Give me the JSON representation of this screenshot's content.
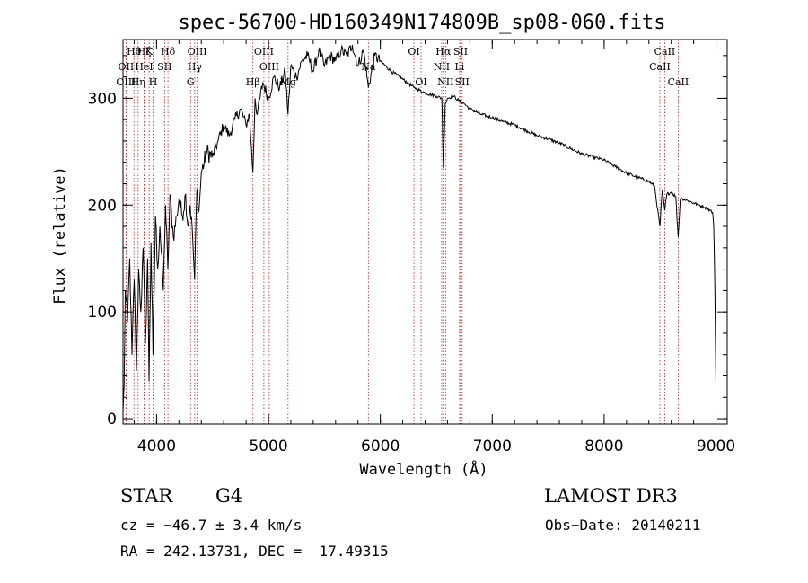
{
  "chart_data": {
    "type": "line",
    "title": "spec-56700-HD160349N174809B_sp08-060.fits",
    "xlabel": "Wavelength (Å)",
    "ylabel": "Flux (relative)",
    "xlim": [
      3700,
      9100
    ],
    "ylim": [
      -5,
      355
    ],
    "xticks": [
      4000,
      5000,
      6000,
      7000,
      8000,
      9000
    ],
    "yticks": [
      0,
      100,
      200,
      300
    ],
    "x_minor_step": 200,
    "y_minor_step": 20,
    "series": [
      {
        "name": "spectrum",
        "x": [
          3700,
          3710,
          3720,
          3740,
          3760,
          3780,
          3800,
          3820,
          3840,
          3860,
          3880,
          3900,
          3920,
          3933,
          3950,
          3968,
          3990,
          4010,
          4030,
          4060,
          4080,
          4101,
          4120,
          4150,
          4180,
          4200,
          4230,
          4260,
          4280,
          4300,
          4320,
          4340,
          4360,
          4380,
          4400,
          4450,
          4500,
          4550,
          4600,
          4650,
          4700,
          4750,
          4800,
          4830,
          4861,
          4880,
          4900,
          4950,
          5000,
          5050,
          5100,
          5150,
          5175,
          5200,
          5250,
          5300,
          5350,
          5400,
          5450,
          5500,
          5550,
          5600,
          5650,
          5700,
          5750,
          5800,
          5850,
          5893,
          5950,
          6000,
          6100,
          6200,
          6300,
          6400,
          6500,
          6550,
          6563,
          6580,
          6600,
          6650,
          6700,
          6750,
          6800,
          6900,
          7000,
          7100,
          7200,
          7300,
          7400,
          7500,
          7600,
          7700,
          7800,
          7900,
          8000,
          8100,
          8200,
          8300,
          8400,
          8450,
          8498,
          8520,
          8542,
          8560,
          8600,
          8640,
          8662,
          8680,
          8700,
          8750,
          8800,
          8850,
          8900,
          8950,
          8970,
          8980,
          8990,
          9000
        ],
        "y": [
          5,
          30,
          120,
          90,
          150,
          60,
          130,
          45,
          140,
          100,
          160,
          70,
          150,
          35,
          165,
          60,
          190,
          140,
          180,
          120,
          200,
          140,
          210,
          170,
          190,
          205,
          190,
          210,
          180,
          200,
          175,
          130,
          215,
          195,
          230,
          250,
          245,
          260,
          275,
          265,
          280,
          290,
          275,
          285,
          230,
          300,
          285,
          315,
          300,
          320,
          310,
          325,
          285,
          330,
          320,
          335,
          340,
          325,
          345,
          330,
          340,
          335,
          345,
          340,
          350,
          330,
          345,
          310,
          340,
          335,
          325,
          318,
          310,
          305,
          302,
          300,
          235,
          295,
          300,
          302,
          298,
          295,
          290,
          285,
          282,
          278,
          275,
          270,
          265,
          262,
          258,
          253,
          248,
          245,
          242,
          236,
          230,
          226,
          222,
          218,
          180,
          214,
          195,
          210,
          212,
          208,
          170,
          205,
          206,
          204,
          202,
          200,
          198,
          195,
          193,
          180,
          120,
          30
        ]
      }
    ],
    "line_markers": [
      {
        "label": "Hθ",
        "x": 3798,
        "row": 0
      },
      {
        "label": "OII",
        "x": 3727,
        "row": 1
      },
      {
        "label": "OIII",
        "x": 3727,
        "row": 2
      },
      {
        "label": "Hη",
        "x": 3835,
        "row": 2
      },
      {
        "label": "Hζ",
        "x": 3889,
        "row": 0
      },
      {
        "label": "HeI",
        "x": 3889,
        "row": 1
      },
      {
        "label": "K",
        "x": 3934,
        "row": 0
      },
      {
        "label": "H",
        "x": 3969,
        "row": 2
      },
      {
        "label": "SII",
        "x": 4072,
        "row": 1
      },
      {
        "label": "Hδ",
        "x": 4102,
        "row": 0
      },
      {
        "label": "OIII",
        "x": 4363,
        "row": 0
      },
      {
        "label": "Hγ",
        "x": 4341,
        "row": 1
      },
      {
        "label": "G",
        "x": 4304,
        "row": 2
      },
      {
        "label": "OIII",
        "x": 4959,
        "row": 0
      },
      {
        "label": "OIII",
        "x": 5007,
        "row": 1
      },
      {
        "label": "Hβ",
        "x": 4861,
        "row": 2
      },
      {
        "label": "Mg",
        "x": 5175,
        "row": 2
      },
      {
        "label": "Na",
        "x": 5893,
        "row": 1
      },
      {
        "label": "OI",
        "x": 6300,
        "row": 0
      },
      {
        "label": "OI",
        "x": 6364,
        "row": 2
      },
      {
        "label": "Hα",
        "x": 6563,
        "row": 0
      },
      {
        "label": "NII",
        "x": 6548,
        "row": 1
      },
      {
        "label": "NII",
        "x": 6583,
        "row": 2
      },
      {
        "label": "SII",
        "x": 6717,
        "row": 0
      },
      {
        "label": "Li",
        "x": 6708,
        "row": 1
      },
      {
        "label": "SII",
        "x": 6731,
        "row": 2
      },
      {
        "label": "CaII",
        "x": 8542,
        "row": 0
      },
      {
        "label": "CaII",
        "x": 8498,
        "row": 1
      },
      {
        "label": "CaII",
        "x": 8662,
        "row": 2
      }
    ],
    "marker_color": "#b22222"
  },
  "info": {
    "class": "STAR",
    "subclass": "G4",
    "survey": "LAMOST DR3",
    "cz": "cz = −46.7 ± 3.4 km/s",
    "obs_date": "Obs−Date: 20140211",
    "coords": "RA = 242.13731, DEC =  17.49315"
  }
}
